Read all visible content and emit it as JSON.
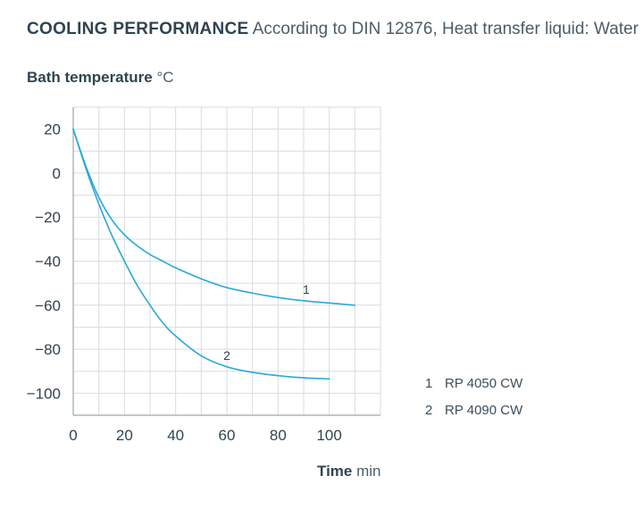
{
  "header": {
    "title_bold": "COOLING PERFORMANCE",
    "title_rest": "According to DIN 12876, Heat transfer liquid: Water"
  },
  "axes": {
    "y_label": "Bath temperature",
    "y_unit": "°C",
    "x_label": "Time",
    "x_unit": "min"
  },
  "legend": [
    {
      "id": "1",
      "label": "RP 4050 CW"
    },
    {
      "id": "2",
      "label": "RP 4090 CW"
    }
  ],
  "colors": {
    "line": "#29a9d6",
    "grid": "#d6dde2",
    "axis": "#9aa8b1",
    "text": "#2f4451"
  },
  "chart_data": {
    "type": "line",
    "title": "COOLING PERFORMANCE According to DIN 12876, Heat transfer liquid: Water",
    "xlabel": "Time min",
    "ylabel": "Bath temperature °C",
    "xlim": [
      0,
      120
    ],
    "ylim": [
      -110,
      30
    ],
    "xticks": [
      0,
      20,
      40,
      60,
      80,
      100
    ],
    "yticks": [
      20,
      0,
      -20,
      -40,
      -60,
      -80,
      -100
    ],
    "grid": true,
    "series": [
      {
        "name": "RP 4050 CW",
        "marker": "1",
        "x": [
          0,
          5,
          10,
          15,
          20,
          25,
          30,
          35,
          40,
          50,
          60,
          70,
          80,
          90,
          100,
          110
        ],
        "y": [
          20,
          3,
          -11,
          -21,
          -28,
          -33,
          -37,
          -40,
          -43,
          -48,
          -52,
          -54.5,
          -56.5,
          -58,
          -59,
          -60
        ]
      },
      {
        "name": "RP 4090 CW",
        "marker": "2",
        "x": [
          0,
          5,
          10,
          15,
          20,
          25,
          30,
          35,
          40,
          50,
          60,
          70,
          80,
          90,
          100
        ],
        "y": [
          20,
          2,
          -14,
          -28,
          -40,
          -51,
          -60,
          -68,
          -74,
          -83,
          -88,
          -90.5,
          -92,
          -93,
          -93.5
        ]
      }
    ]
  }
}
